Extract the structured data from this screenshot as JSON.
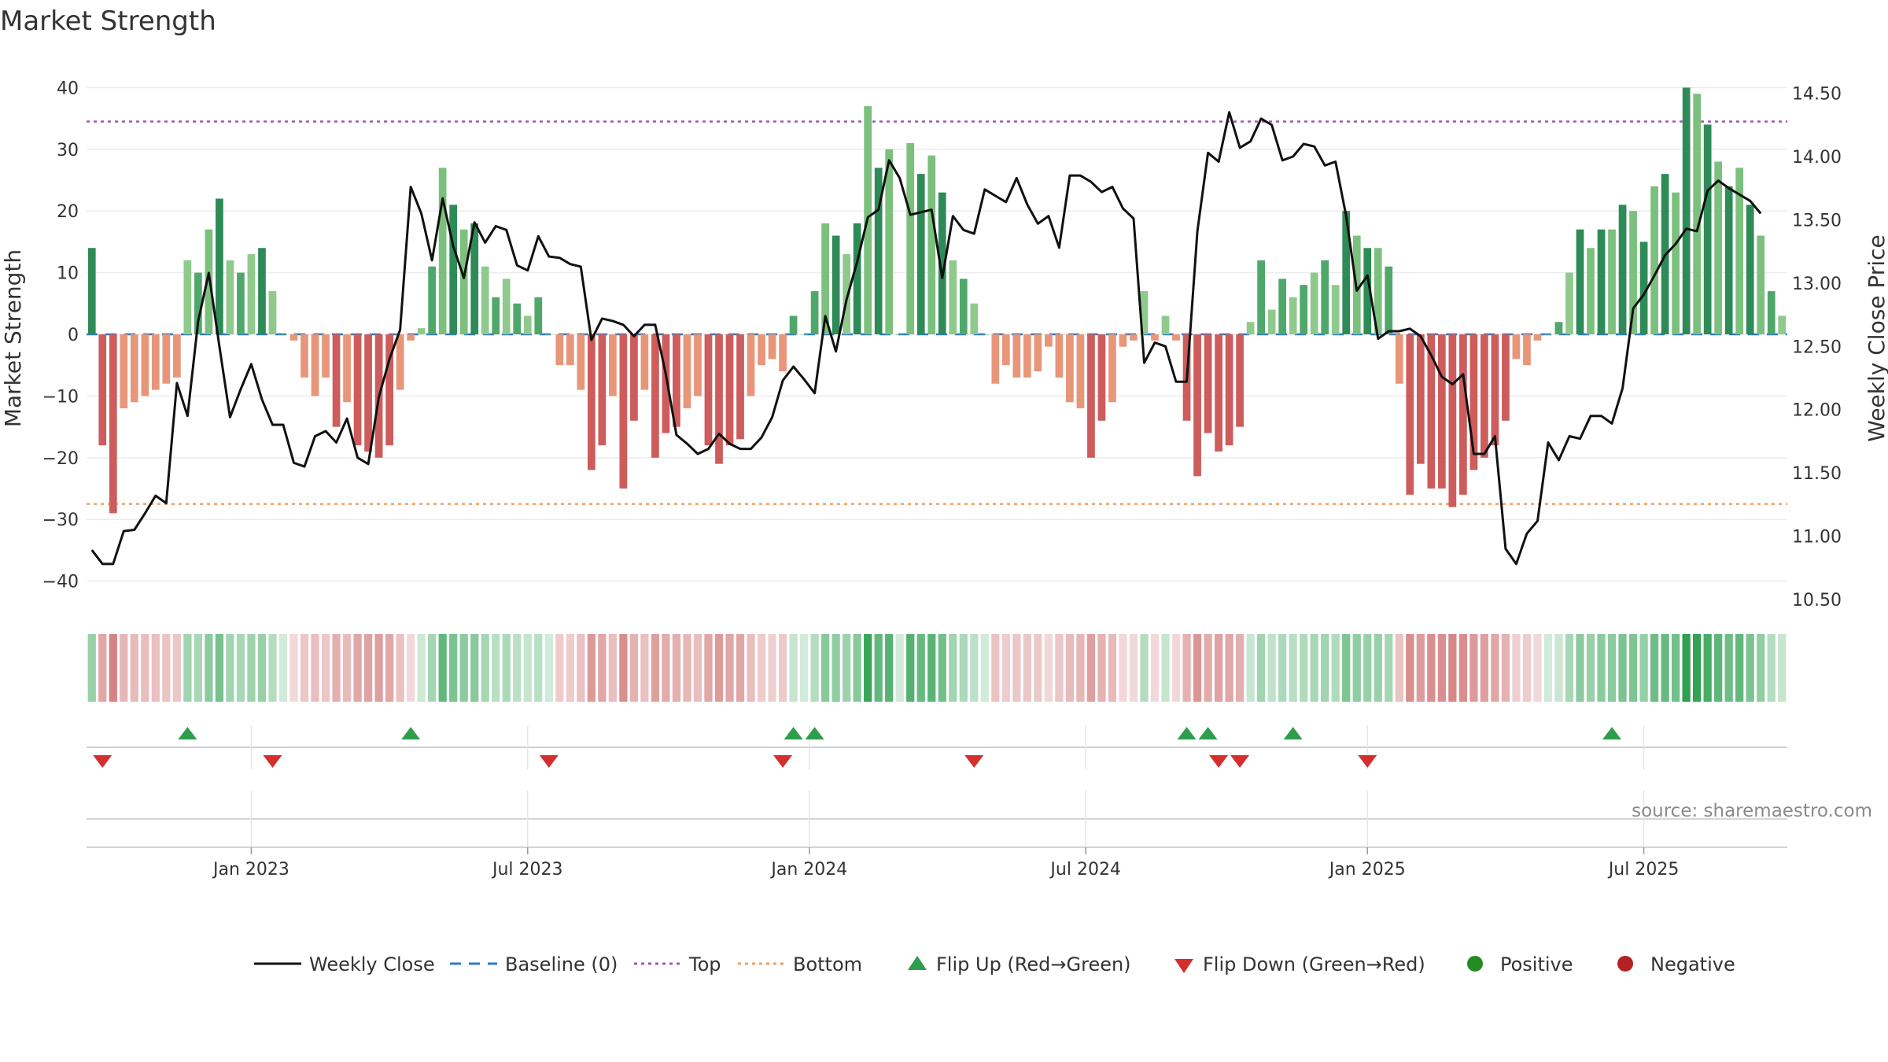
{
  "chart_data": {
    "type": "bar",
    "title": "Market Strength",
    "ylabel_left": "Market Strength",
    "ylabel_right": "Weekly Close Price",
    "ylim_left": [
      -44,
      44
    ],
    "ylim_right": [
      10.45,
      14.74
    ],
    "yticks_left": [
      "40",
      "30",
      "20",
      "10",
      "0",
      "−10",
      "−20",
      "−30",
      "−40"
    ],
    "yticks_left_values": [
      40,
      30,
      20,
      10,
      0,
      -10,
      -20,
      -30,
      -40
    ],
    "yticks_right": [
      "14.50",
      "14.00",
      "13.50",
      "13.00",
      "12.50",
      "12.00",
      "11.50",
      "11.00",
      "10.50"
    ],
    "yticks_right_values": [
      14.5,
      14.0,
      13.5,
      13.0,
      12.5,
      12.0,
      11.5,
      11.0,
      10.5
    ],
    "xtick_labels": [
      "Jan 2023",
      "Jul 2023",
      "Jan 2024",
      "Jul 2024",
      "Jan 2025",
      "Jul 2025"
    ],
    "xtick_weeks": [
      15,
      41,
      67.5,
      93.5,
      120,
      146
    ],
    "top_line": 34.5,
    "bottom_line": -27.5,
    "baseline": 0,
    "strength_values": [
      14,
      -18,
      -29,
      -12,
      -11,
      -10,
      -9,
      -8,
      -7,
      12,
      10,
      17,
      22,
      12,
      10,
      13,
      14,
      7,
      0,
      -1,
      -7,
      -10,
      -7,
      -15,
      -11,
      -18,
      -19,
      -20,
      -18,
      -9,
      -1,
      1,
      11,
      27,
      21,
      17,
      18,
      11,
      6,
      9,
      5,
      3,
      6,
      0,
      -5,
      -5,
      -9,
      -22,
      -18,
      -10,
      -25,
      -14,
      -9,
      -20,
      -16,
      -15,
      -12,
      -10,
      -18,
      -21,
      -18,
      -17,
      -10,
      -5,
      -4,
      -6,
      3,
      0,
      7,
      18,
      16,
      13,
      18,
      37,
      27,
      30,
      0,
      31,
      26,
      29,
      23,
      12,
      9,
      5,
      0,
      -8,
      -5,
      -7,
      -7,
      -6,
      -2,
      -7,
      -11,
      -12,
      -20,
      -14,
      -11,
      -2,
      -1,
      7,
      -1,
      3,
      -1,
      -14,
      -23,
      -16,
      -19,
      -18,
      -15,
      2,
      12,
      4,
      9,
      6,
      8,
      10,
      12,
      8,
      20,
      16,
      14,
      14,
      11,
      -8,
      -26,
      -21,
      -25,
      -25,
      -28,
      -26,
      -22,
      -20,
      -18,
      -14,
      -4,
      -5,
      -1,
      0,
      2,
      10,
      17,
      14,
      17,
      17,
      21,
      20,
      15,
      24,
      26,
      23,
      40,
      39,
      34,
      28,
      24,
      27,
      21,
      16,
      7,
      3
    ],
    "positive_color": "#2e8b57",
    "negative_color": "#d32f2f",
    "top_color": "#9b59b6",
    "bottom_color": "#f0a060",
    "baseline_color": "#2f7bbf",
    "series": [
      {
        "name": "Weekly Close",
        "color": "#000000",
        "values": [
          10.89,
          10.78,
          10.78,
          11.04,
          11.05,
          11.18,
          11.32,
          11.26,
          12.21,
          11.95,
          12.7,
          13.08,
          12.5,
          11.94,
          12.16,
          12.36,
          12.08,
          11.88,
          11.88,
          11.58,
          11.55,
          11.79,
          11.83,
          11.74,
          11.93,
          11.62,
          11.57,
          12.1,
          12.4,
          12.63,
          13.76,
          13.55,
          13.18,
          13.67,
          13.29,
          13.04,
          13.48,
          13.32,
          13.45,
          13.42,
          13.14,
          13.1,
          13.37,
          13.21,
          13.2,
          13.15,
          13.13,
          12.55,
          12.72,
          12.7,
          12.67,
          12.58,
          12.67,
          12.67,
          12.28,
          11.8,
          11.73,
          11.65,
          11.69,
          11.81,
          11.73,
          11.69,
          11.69,
          11.78,
          11.94,
          12.23,
          12.34,
          12.24,
          12.13,
          12.74,
          12.46,
          12.87,
          13.17,
          13.52,
          13.58,
          13.97,
          13.83,
          13.54,
          13.56,
          13.58,
          13.04,
          13.53,
          13.42,
          13.39,
          13.74,
          13.69,
          13.64,
          13.83,
          13.62,
          13.47,
          13.53,
          13.28,
          13.85,
          13.85,
          13.8,
          13.72,
          13.76,
          13.59,
          13.51,
          12.37,
          12.53,
          12.5,
          12.22,
          12.22,
          13.41,
          14.03,
          13.96,
          14.35,
          14.07,
          14.12,
          14.3,
          14.25,
          13.97,
          14.0,
          14.1,
          14.08,
          13.93,
          13.96,
          13.53,
          12.94,
          13.06,
          12.56,
          12.62,
          12.62,
          12.64,
          12.58,
          12.43,
          12.26,
          12.2,
          12.28,
          11.65,
          11.65,
          11.79,
          10.9,
          10.78,
          11.02,
          11.12,
          11.74,
          11.6,
          11.79,
          11.77,
          11.95,
          11.95,
          11.89,
          12.17,
          12.8,
          12.91,
          13.06,
          13.22,
          13.31,
          13.43,
          13.41,
          13.73,
          13.81,
          13.75,
          13.7,
          13.65,
          13.55
        ]
      },
      {
        "name": "Baseline (0)"
      },
      {
        "name": "Top"
      },
      {
        "name": "Bottom"
      },
      {
        "name": "Flip Up (Red→Green)",
        "weeks": [
          9,
          30,
          66,
          68,
          103,
          105,
          113,
          143
        ]
      },
      {
        "name": "Flip Down (Green→Red)",
        "weeks": [
          1,
          17,
          43,
          65,
          83,
          106,
          108,
          120
        ]
      }
    ],
    "legend": [
      {
        "label": "Weekly Close",
        "kind": "line"
      },
      {
        "label": "Baseline (0)",
        "kind": "dash"
      },
      {
        "label": "Top",
        "kind": "dot-purple"
      },
      {
        "label": "Bottom",
        "kind": "dot-orange"
      },
      {
        "label": "Flip Up (Red→Green)",
        "kind": "tri-up"
      },
      {
        "label": "Flip Down (Green→Red)",
        "kind": "tri-down"
      },
      {
        "label": "Positive",
        "kind": "dot-green"
      },
      {
        "label": "Negative",
        "kind": "dot-red"
      }
    ],
    "legend_position": "bottom-center"
  },
  "source_text": "source: sharemaestro.com"
}
